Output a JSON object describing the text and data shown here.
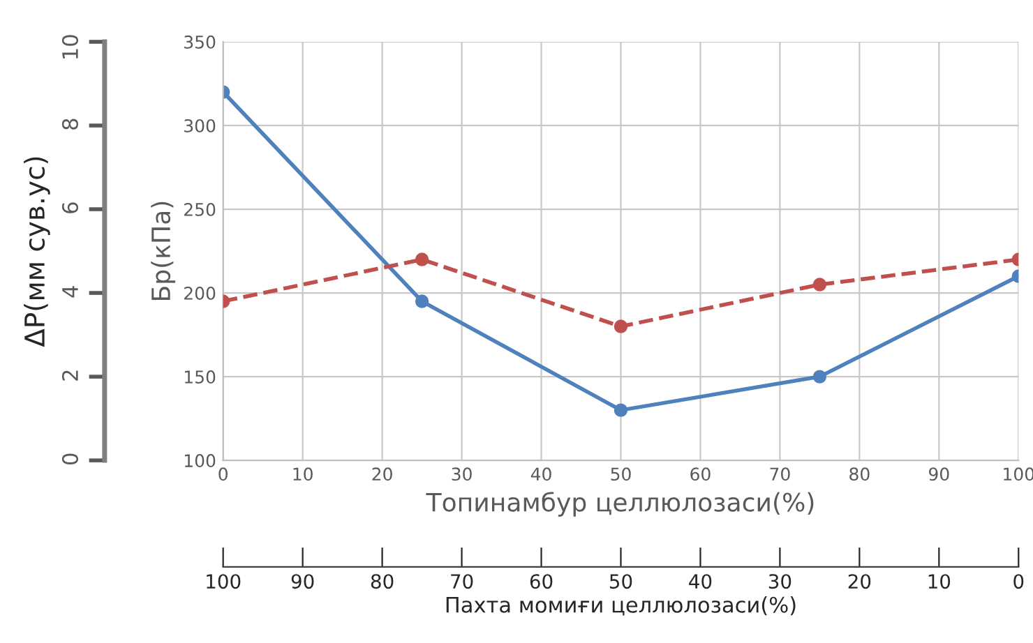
{
  "chart_data": {
    "type": "line",
    "xlabel": "Топинамбур целлюлозаси(%)",
    "ylabel": "Бр(кПа)",
    "y2label": "ΔP(мм сув.ус)",
    "x2label": "Пахта момиғи целлюлозаси(%)",
    "x": [
      0,
      25,
      50,
      75,
      100
    ],
    "series": [
      {
        "color": "#4f81bd",
        "values": [
          320,
          195,
          130,
          150,
          210
        ],
        "line_style": "solid"
      },
      {
        "color": "#c0504d",
        "values": [
          3.8,
          4.8,
          3.2,
          4.2,
          4.8
        ],
        "line_style": "dashed",
        "axis": "y2"
      }
    ],
    "xlim": [
      0,
      100
    ],
    "xticks": [
      0,
      10,
      20,
      30,
      40,
      50,
      60,
      70,
      80,
      90,
      100
    ],
    "ylim": [
      100,
      350
    ],
    "yticks": [
      100,
      150,
      200,
      250,
      300,
      350
    ],
    "y2lim": [
      0,
      10
    ],
    "y2ticks": [
      0,
      2,
      4,
      6,
      8,
      10
    ],
    "x2lim": [
      100,
      0
    ],
    "x2ticks": [
      100,
      90,
      80,
      70,
      60,
      50,
      40,
      30,
      20,
      10,
      0
    ],
    "marker": "circle",
    "grid": true,
    "legend": false
  }
}
